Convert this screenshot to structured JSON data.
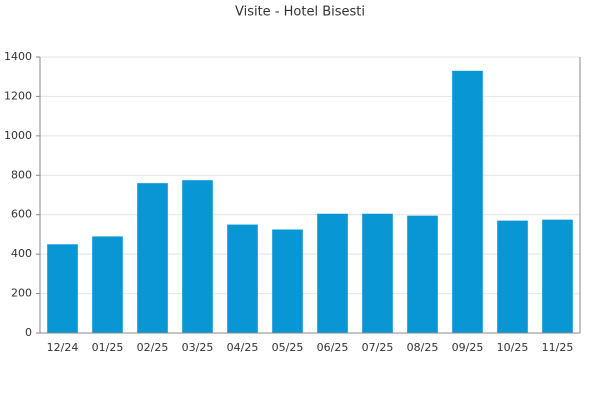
{
  "chart_data": {
    "type": "bar",
    "title": "Visite - Hotel Bisesti",
    "categories": [
      "12/24",
      "01/25",
      "02/25",
      "03/25",
      "04/25",
      "05/25",
      "06/25",
      "07/25",
      "08/25",
      "09/25",
      "10/25",
      "11/25"
    ],
    "values": [
      450,
      490,
      760,
      775,
      550,
      525,
      605,
      605,
      595,
      1330,
      570,
      575
    ],
    "color": "#0896d5",
    "ylim": [
      0,
      1400
    ],
    "yticks": [
      0,
      200,
      400,
      600,
      800,
      1000,
      1200,
      1400
    ],
    "grid": true
  }
}
